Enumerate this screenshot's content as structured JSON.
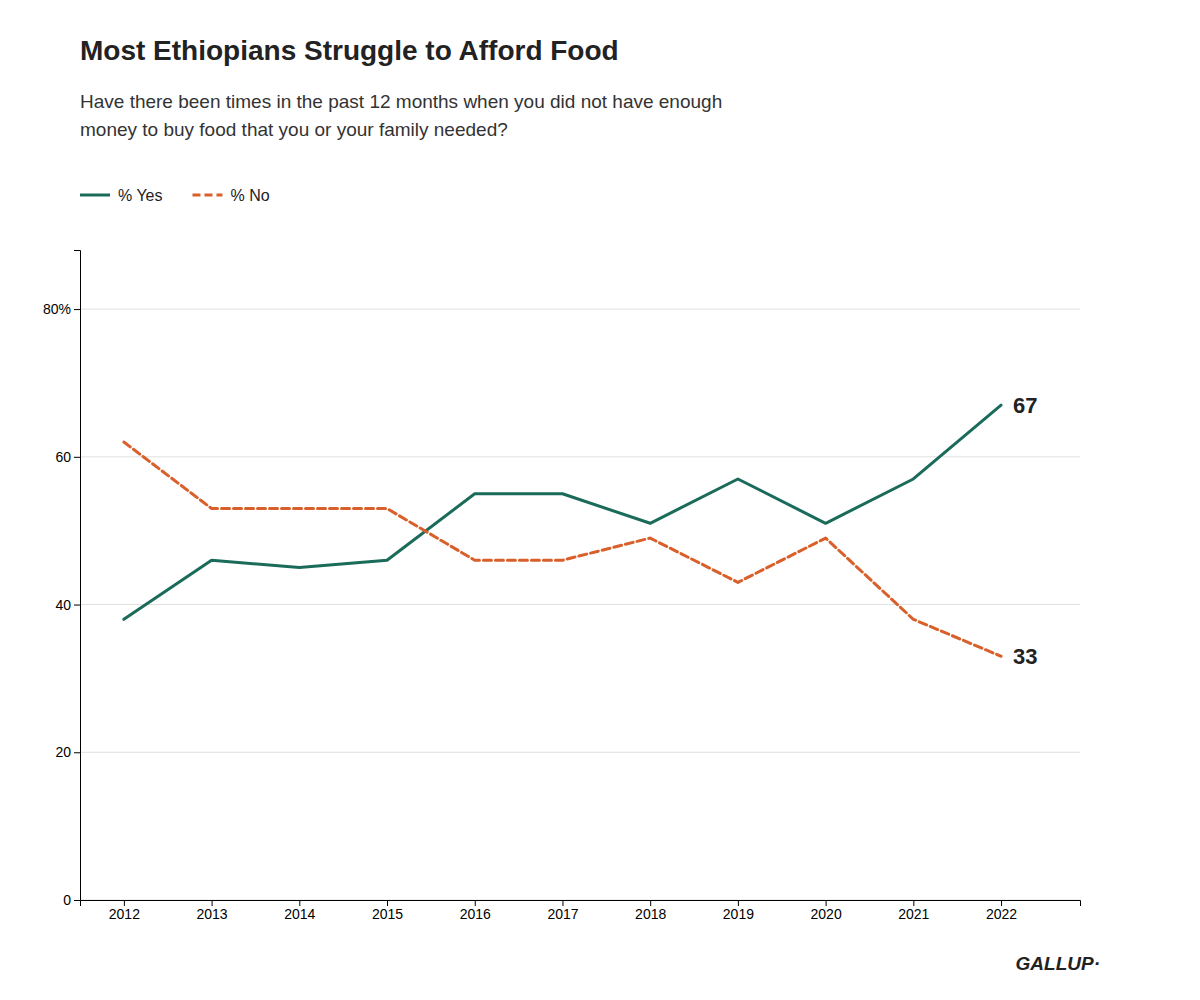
{
  "chart_data": {
    "type": "line",
    "title": "Most Ethiopians Struggle to Afford Food",
    "subtitle": [
      "Have there been times in the past 12 months when you did not have enough",
      "money to buy food that you or your family needed?"
    ],
    "x": [
      2012,
      2013,
      2014,
      2015,
      2016,
      2017,
      2018,
      2019,
      2020,
      2021,
      2022
    ],
    "series": [
      {
        "name": "% Yes",
        "color": "#1b6b5a",
        "line_style": "solid",
        "values": [
          38,
          46,
          45,
          46,
          55,
          55,
          51,
          57,
          51,
          57,
          67
        ]
      },
      {
        "name": "% No",
        "color": "#d95f2b",
        "line_style": "dashed",
        "values": [
          62,
          53,
          53,
          53,
          46,
          46,
          49,
          43,
          49,
          38,
          33
        ]
      }
    ],
    "xlim": [
      2011.5,
      2022.9
    ],
    "xticks": [
      2012,
      2013,
      2014,
      2015,
      2016,
      2017,
      2018,
      2019,
      2020,
      2021,
      2022
    ],
    "ylim": [
      0,
      88
    ],
    "yticks": [
      0,
      20,
      40,
      60,
      {
        "value": 80,
        "label": "80%"
      }
    ],
    "grid": true,
    "legend": "top-left",
    "annotations": [
      "67",
      "33"
    ],
    "source": "GALLUP·"
  }
}
